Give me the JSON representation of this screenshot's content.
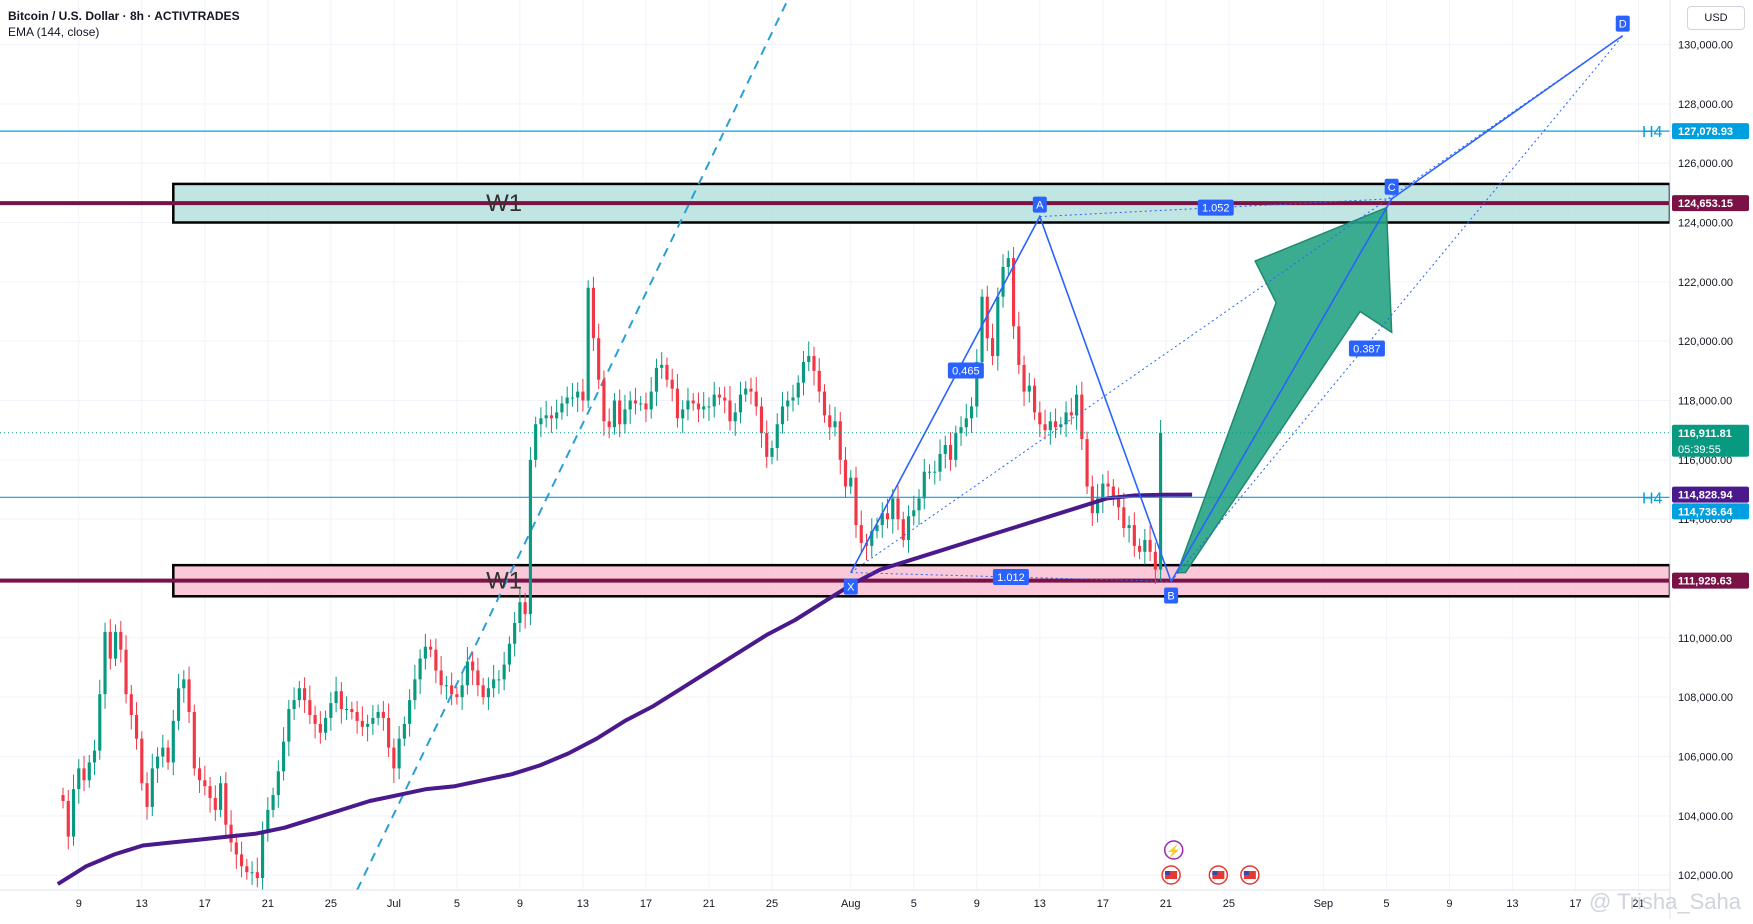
{
  "header": {
    "title": "Bitcoin / U.S. Dollar · 8h · ACTIVTRADES",
    "indicator": "EMA (144, close)"
  },
  "currency": "USD",
  "watermark": "@ Trisha_Saha",
  "colors": {
    "bull": "#089981",
    "bear": "#f23645",
    "ema": "#4a1a8c",
    "pattern": "#2962ff",
    "h4": "#00a0e0",
    "w1": "#7a1245",
    "zone_top": "#b2dfdb",
    "zone_bottom": "#f8bbd0",
    "arrow": "#26a383"
  },
  "chart_data": {
    "type": "candlestick",
    "title": "Bitcoin / U.S. Dollar · 8h · ACTIVTRADES",
    "indicator": "EMA (144, close)",
    "ylim": [
      101500,
      131500
    ],
    "y_ticks": [
      102000,
      104000,
      106000,
      108000,
      110000,
      112000,
      114000,
      116000,
      118000,
      120000,
      122000,
      124000,
      126000,
      128000,
      130000
    ],
    "y_tick_labels": [
      "102,000.00",
      "104,000.00",
      "106,000.00",
      "108,000.00",
      "110,000.00",
      "112,000.00",
      "114,000.00",
      "116,000.00",
      "118,000.00",
      "120,000.00",
      "122,000.00",
      "124,000.00",
      "126,000.00",
      "128,000.00",
      "130,000.00"
    ],
    "x_ticks": [
      {
        "label": "9",
        "i": 3
      },
      {
        "label": "13",
        "i": 15
      },
      {
        "label": "17",
        "i": 27
      },
      {
        "label": "21",
        "i": 39
      },
      {
        "label": "25",
        "i": 51
      },
      {
        "label": "Jul",
        "i": 63
      },
      {
        "label": "5",
        "i": 75
      },
      {
        "label": "9",
        "i": 87
      },
      {
        "label": "13",
        "i": 99
      },
      {
        "label": "17",
        "i": 111
      },
      {
        "label": "21",
        "i": 123
      },
      {
        "label": "25",
        "i": 135
      },
      {
        "label": "Aug",
        "i": 150
      },
      {
        "label": "5",
        "i": 162
      },
      {
        "label": "9",
        "i": 174
      },
      {
        "label": "13",
        "i": 186
      },
      {
        "label": "17",
        "i": 198
      },
      {
        "label": "21",
        "i": 210
      },
      {
        "label": "25",
        "i": 222
      },
      {
        "label": "Sep",
        "i": 240
      },
      {
        "label": "5",
        "i": 252
      },
      {
        "label": "9",
        "i": 264
      },
      {
        "label": "13",
        "i": 276
      },
      {
        "label": "17",
        "i": 288
      },
      {
        "label": "21",
        "i": 300
      }
    ],
    "x_range": [
      -12,
      306
    ],
    "closes": [
      104500,
      103300,
      104900,
      105600,
      105200,
      105800,
      106200,
      108100,
      110200,
      109300,
      110200,
      109600,
      108100,
      107400,
      106600,
      105100,
      104300,
      105600,
      106000,
      106300,
      105800,
      107200,
      108300,
      108600,
      107500,
      105600,
      105200,
      105000,
      104600,
      104200,
      105100,
      103700,
      103100,
      102700,
      102300,
      102100,
      102100,
      101900,
      103500,
      104200,
      104700,
      105500,
      106500,
      107600,
      107900,
      108300,
      107900,
      107400,
      107100,
      106800,
      107300,
      107800,
      108200,
      107600,
      107600,
      107500,
      107200,
      107000,
      107100,
      107300,
      107500,
      107300,
      106300,
      105600,
      106600,
      107100,
      107900,
      108600,
      109300,
      109700,
      109600,
      108900,
      108400,
      108400,
      108100,
      108000,
      108400,
      109200,
      108900,
      108400,
      108000,
      108300,
      108600,
      108600,
      109100,
      109800,
      110500,
      111200,
      110800,
      116000,
      117200,
      117400,
      117500,
      117400,
      117600,
      117900,
      118100,
      118100,
      118300,
      118000,
      121800,
      120100,
      118700,
      117300,
      117100,
      118000,
      117200,
      117700,
      118000,
      117900,
      117900,
      117700,
      118300,
      119100,
      119200,
      118700,
      118400,
      117400,
      117700,
      118000,
      117900,
      117700,
      117800,
      117800,
      118200,
      118100,
      118000,
      117300,
      117600,
      118200,
      118400,
      118300,
      117800,
      116900,
      116100,
      116400,
      117200,
      117800,
      118000,
      118100,
      118600,
      119300,
      119500,
      119000,
      118300,
      117500,
      117100,
      117300,
      116000,
      115100,
      115400,
      113800,
      113200,
      113100,
      113600,
      113800,
      114200,
      114000,
      114700,
      114000,
      113300,
      114100,
      114300,
      114700,
      115600,
      115600,
      115600,
      116200,
      116500,
      116000,
      116900,
      117100,
      117400,
      117800,
      119300,
      121500,
      120100,
      119500,
      121500,
      122500,
      122800,
      120500,
      119200,
      118300,
      118500,
      117600,
      117200,
      117000,
      117300,
      117100,
      117200,
      117600,
      117500,
      118200,
      116700,
      115100,
      114200,
      114700,
      115200,
      115100,
      114700,
      114400,
      113700,
      113800,
      113100,
      112900,
      113300,
      112900,
      112300,
      116912
    ],
    "ema_144": {
      "start_i": -1,
      "values": [
        101700,
        102300,
        102700,
        103000,
        103100,
        103200,
        103300,
        103400,
        103600,
        103900,
        104200,
        104500,
        104700,
        104900,
        105000,
        105200,
        105400,
        105700,
        106100,
        106600,
        107200,
        107700,
        108300,
        108900,
        109500,
        110100,
        110600,
        111200,
        111800,
        112300,
        112600,
        112900,
        113200,
        113500,
        113800,
        114100,
        114400,
        114700,
        114800,
        114820,
        114829
      ]
    },
    "series": [
      {
        "name": "EMA (144, close)",
        "type": "line"
      }
    ],
    "price_labels": [
      {
        "value": 127078.93,
        "label": "127,078.93"
      },
      {
        "value": 124653.15,
        "label": "124,653.15"
      },
      {
        "value": 116911.81,
        "label": "116,911.81",
        "sub": "05:39:55"
      },
      {
        "value": 114828.94,
        "label": "114,828.94"
      },
      {
        "value": 114736.64,
        "label": "114,736.64"
      },
      {
        "value": 111929.63,
        "label": "111,929.63"
      }
    ],
    "horizontal_levels": [
      {
        "value": 127078.93,
        "label": "H4"
      },
      {
        "value": 114736.64,
        "label": "H4"
      },
      {
        "value": 124653.15,
        "label": "W1"
      },
      {
        "value": 111929.63,
        "label": "W1"
      }
    ],
    "zones": [
      {
        "label": "W1",
        "y_min": 124000,
        "y_max": 125300,
        "x_start_i": 21
      },
      {
        "label": "W1",
        "y_min": 111400,
        "y_max": 112450,
        "x_start_i": 21
      }
    ],
    "harmonic_pattern": {
      "points": [
        {
          "label": "X",
          "i": 150,
          "y": 112200
        },
        {
          "label": "A",
          "i": 186,
          "y": 124200
        },
        {
          "label": "B",
          "i": 211,
          "y": 111900
        },
        {
          "label": "C",
          "i": 253,
          "y": 124800
        },
        {
          "label": "D",
          "i": 297,
          "y": 130300
        }
      ],
      "ratios": [
        {
          "label": "1.052"
        },
        {
          "label": "1.012"
        },
        {
          "label": "0.465"
        },
        {
          "label": "0.387"
        }
      ]
    },
    "trend_line": {
      "style": "dashed"
    }
  }
}
